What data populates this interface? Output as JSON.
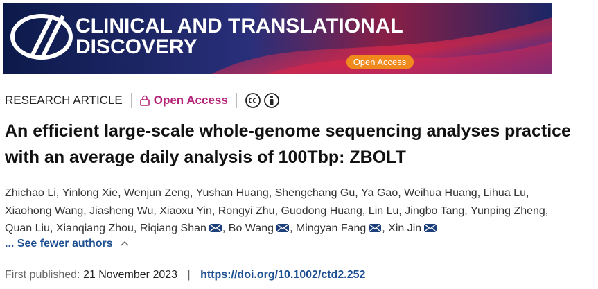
{
  "banner": {
    "journal_line1": "CLINICAL AND TRANSLATIONAL",
    "journal_line2": "DISCOVERY",
    "badge": "Open Access"
  },
  "article": {
    "type": "RESEARCH ARTICLE",
    "access": "Open Access",
    "title": "An efficient large-scale whole-genome sequencing analyses practice with an average daily analysis of 100Tbp: ZBOLT",
    "author_separator": ", ",
    "authors": [
      {
        "name": "Zhichao Li",
        "mail": false
      },
      {
        "name": "Yinlong Xie",
        "mail": false
      },
      {
        "name": "Wenjun Zeng",
        "mail": false
      },
      {
        "name": "Yushan Huang",
        "mail": false
      },
      {
        "name": "Shengchang Gu",
        "mail": false
      },
      {
        "name": "Ya Gao",
        "mail": false
      },
      {
        "name": "Weihua Huang",
        "mail": false
      },
      {
        "name": "Lihua Lu",
        "mail": false
      },
      {
        "name": "Xiaohong Wang",
        "mail": false
      },
      {
        "name": "Jiasheng Wu",
        "mail": false
      },
      {
        "name": "Xiaoxu Yin",
        "mail": false
      },
      {
        "name": "Rongyi Zhu",
        "mail": false
      },
      {
        "name": "Guodong Huang",
        "mail": false
      },
      {
        "name": "Lin Lu",
        "mail": false
      },
      {
        "name": "Jingbo Tang",
        "mail": false
      },
      {
        "name": "Yunping Zheng",
        "mail": false
      },
      {
        "name": "Quan Liu",
        "mail": false
      },
      {
        "name": "Xianqiang Zhou",
        "mail": false
      },
      {
        "name": "Riqiang Shan",
        "mail": true
      },
      {
        "name": "Bo Wang",
        "mail": true
      },
      {
        "name": "Mingyan Fang",
        "mail": true
      },
      {
        "name": "Xin Jin",
        "mail": true
      }
    ],
    "toggle": "... See fewer authors",
    "published_label": "First published:",
    "published_date": "21 November 2023",
    "published_separator": "|",
    "doi": "https://doi.org/10.1002/ctd2.252"
  }
}
